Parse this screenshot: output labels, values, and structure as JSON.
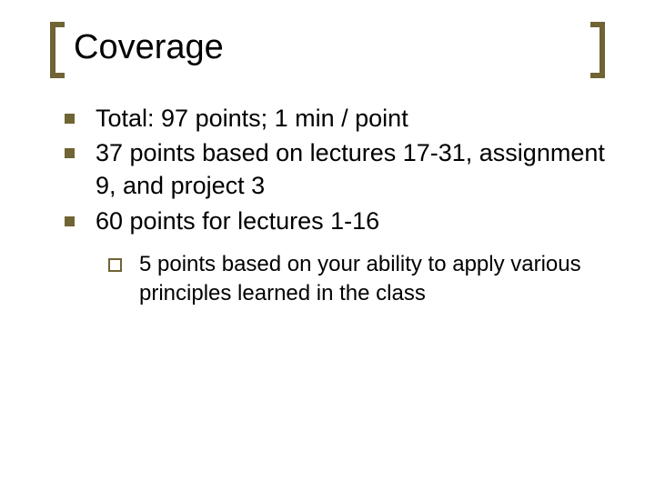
{
  "slide": {
    "title": "Coverage",
    "title_fontsize": 38,
    "title_color": "#000000",
    "bracket_color": "#706334",
    "bracket_thickness": 6,
    "background_color": "#ffffff",
    "bullet_color": "#706334",
    "sub_bullet_border_color": "#706334",
    "body_fontsize": 27,
    "sub_fontsize": 24,
    "body_color": "#000000",
    "items": [
      {
        "text": "Total:  97 points; 1 min / point"
      },
      {
        "text": "37 points based on lectures 17-31, assignment 9, and project 3"
      },
      {
        "text": "60 points for lectures 1-16",
        "sub": [
          {
            "text": "5 points based on your ability to apply various principles learned in the class"
          }
        ]
      }
    ]
  }
}
